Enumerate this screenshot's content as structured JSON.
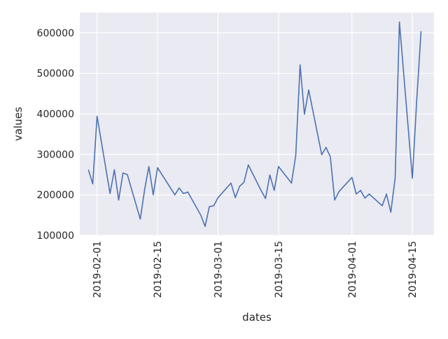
{
  "chart_data": {
    "type": "line",
    "xlabel": "dates",
    "ylabel": "values",
    "xlim": [
      "2019-01-28",
      "2019-04-20"
    ],
    "ylim": [
      100000,
      650000
    ],
    "x_ticks": [
      "2019-02-01",
      "2019-02-15",
      "2019-03-01",
      "2019-03-15",
      "2019-04-01",
      "2019-04-15"
    ],
    "y_ticks": [
      100000,
      200000,
      300000,
      400000,
      500000,
      600000
    ],
    "y_tick_labels": [
      "100000",
      "200000",
      "300000",
      "400000",
      "500000",
      "600000"
    ],
    "grid": true,
    "colors": {
      "background": "#eaeaf2",
      "grid": "#ffffff",
      "line": "#4c72b0"
    },
    "series": [
      {
        "x": [
          "2019-01-30",
          "2019-01-31",
          "2019-02-01",
          "2019-02-04",
          "2019-02-05",
          "2019-02-06",
          "2019-02-07",
          "2019-02-08",
          "2019-02-11",
          "2019-02-12",
          "2019-02-13",
          "2019-02-14",
          "2019-02-15",
          "2019-02-19",
          "2019-02-20",
          "2019-02-21",
          "2019-02-22",
          "2019-02-25",
          "2019-02-26",
          "2019-02-27",
          "2019-02-28",
          "2019-03-01",
          "2019-03-04",
          "2019-03-05",
          "2019-03-06",
          "2019-03-07",
          "2019-03-08",
          "2019-03-11",
          "2019-03-12",
          "2019-03-13",
          "2019-03-14",
          "2019-03-15",
          "2019-03-18",
          "2019-03-19",
          "2019-03-20",
          "2019-03-21",
          "2019-03-22",
          "2019-03-25",
          "2019-03-26",
          "2019-03-27",
          "2019-03-28",
          "2019-03-29",
          "2019-04-01",
          "2019-04-02",
          "2019-04-03",
          "2019-04-04",
          "2019-04-05",
          "2019-04-08",
          "2019-04-09",
          "2019-04-10",
          "2019-04-11",
          "2019-04-12",
          "2019-04-15",
          "2019-04-16",
          "2019-04-17"
        ],
        "values": [
          262000,
          227000,
          394000,
          203000,
          262000,
          187000,
          254000,
          250000,
          140000,
          213000,
          270000,
          200000,
          267000,
          200000,
          217000,
          203000,
          207000,
          150000,
          122000,
          171000,
          173000,
          193000,
          229000,
          193000,
          221000,
          231000,
          274000,
          210000,
          191000,
          249000,
          211000,
          270000,
          229000,
          297000,
          521000,
          399000,
          459000,
          299000,
          317000,
          294000,
          187000,
          208000,
          243000,
          202000,
          211000,
          192000,
          202000,
          173000,
          202000,
          157000,
          241000,
          627000,
          241000,
          433000,
          604000
        ]
      }
    ]
  }
}
